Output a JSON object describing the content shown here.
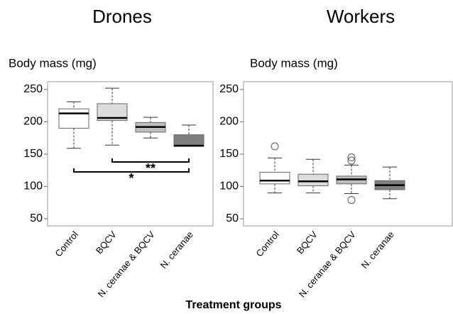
{
  "shared_xlabel": "Treatment groups",
  "chart_data": [
    {
      "type": "box",
      "title": "Drones",
      "ylabel": "Body mass (mg)",
      "categories": [
        "Control",
        "BQCV",
        "N. ceranae & BQCV",
        "N. ceranae"
      ],
      "colors": [
        "#ffffff",
        "#dcdcdc",
        "#bdbdbd",
        "#7f7f7f"
      ],
      "boxes": [
        {
          "whisker_low": 159,
          "q1": 190,
          "median": 213,
          "q3": 220,
          "whisker_high": 231,
          "outliers": []
        },
        {
          "whisker_low": 164,
          "q1": 202,
          "median": 206,
          "q3": 228,
          "whisker_high": 252,
          "outliers": []
        },
        {
          "whisker_low": 175,
          "q1": 184,
          "median": 192,
          "q3": 199,
          "whisker_high": 207,
          "outliers": []
        },
        {
          "whisker_low": 162,
          "q1": 162,
          "median": 163,
          "q3": 180,
          "whisker_high": 195,
          "outliers": []
        }
      ],
      "annotations": [
        {
          "text": "**",
          "from": 1,
          "to": 3
        },
        {
          "text": "*",
          "from": 0,
          "to": 3
        }
      ],
      "ylim": [
        39,
        262
      ],
      "yticks": [
        50,
        100,
        150,
        200,
        250
      ]
    },
    {
      "type": "box",
      "title": "Workers",
      "ylabel": "Body mass (mg)",
      "categories": [
        "Control",
        "BQCV",
        "N. ceranae & BQCV",
        "N. ceranae"
      ],
      "colors": [
        "#ffffff",
        "#dcdcdc",
        "#bdbdbd",
        "#7f7f7f"
      ],
      "boxes": [
        {
          "whisker_low": 90,
          "q1": 104,
          "median": 109,
          "q3": 122,
          "whisker_high": 144,
          "outliers": [
            162
          ]
        },
        {
          "whisker_low": 90,
          "q1": 101,
          "median": 108,
          "q3": 119,
          "whisker_high": 142,
          "outliers": []
        },
        {
          "whisker_low": 89,
          "q1": 104,
          "median": 111,
          "q3": 116,
          "whisker_high": 133,
          "outliers": [
            145,
            140,
            79
          ]
        },
        {
          "whisker_low": 81,
          "q1": 95,
          "median": 102,
          "q3": 109,
          "whisker_high": 130,
          "outliers": []
        }
      ],
      "annotations": [],
      "ylim": [
        39,
        262
      ],
      "yticks": [
        50,
        100,
        150,
        200,
        250
      ]
    }
  ]
}
